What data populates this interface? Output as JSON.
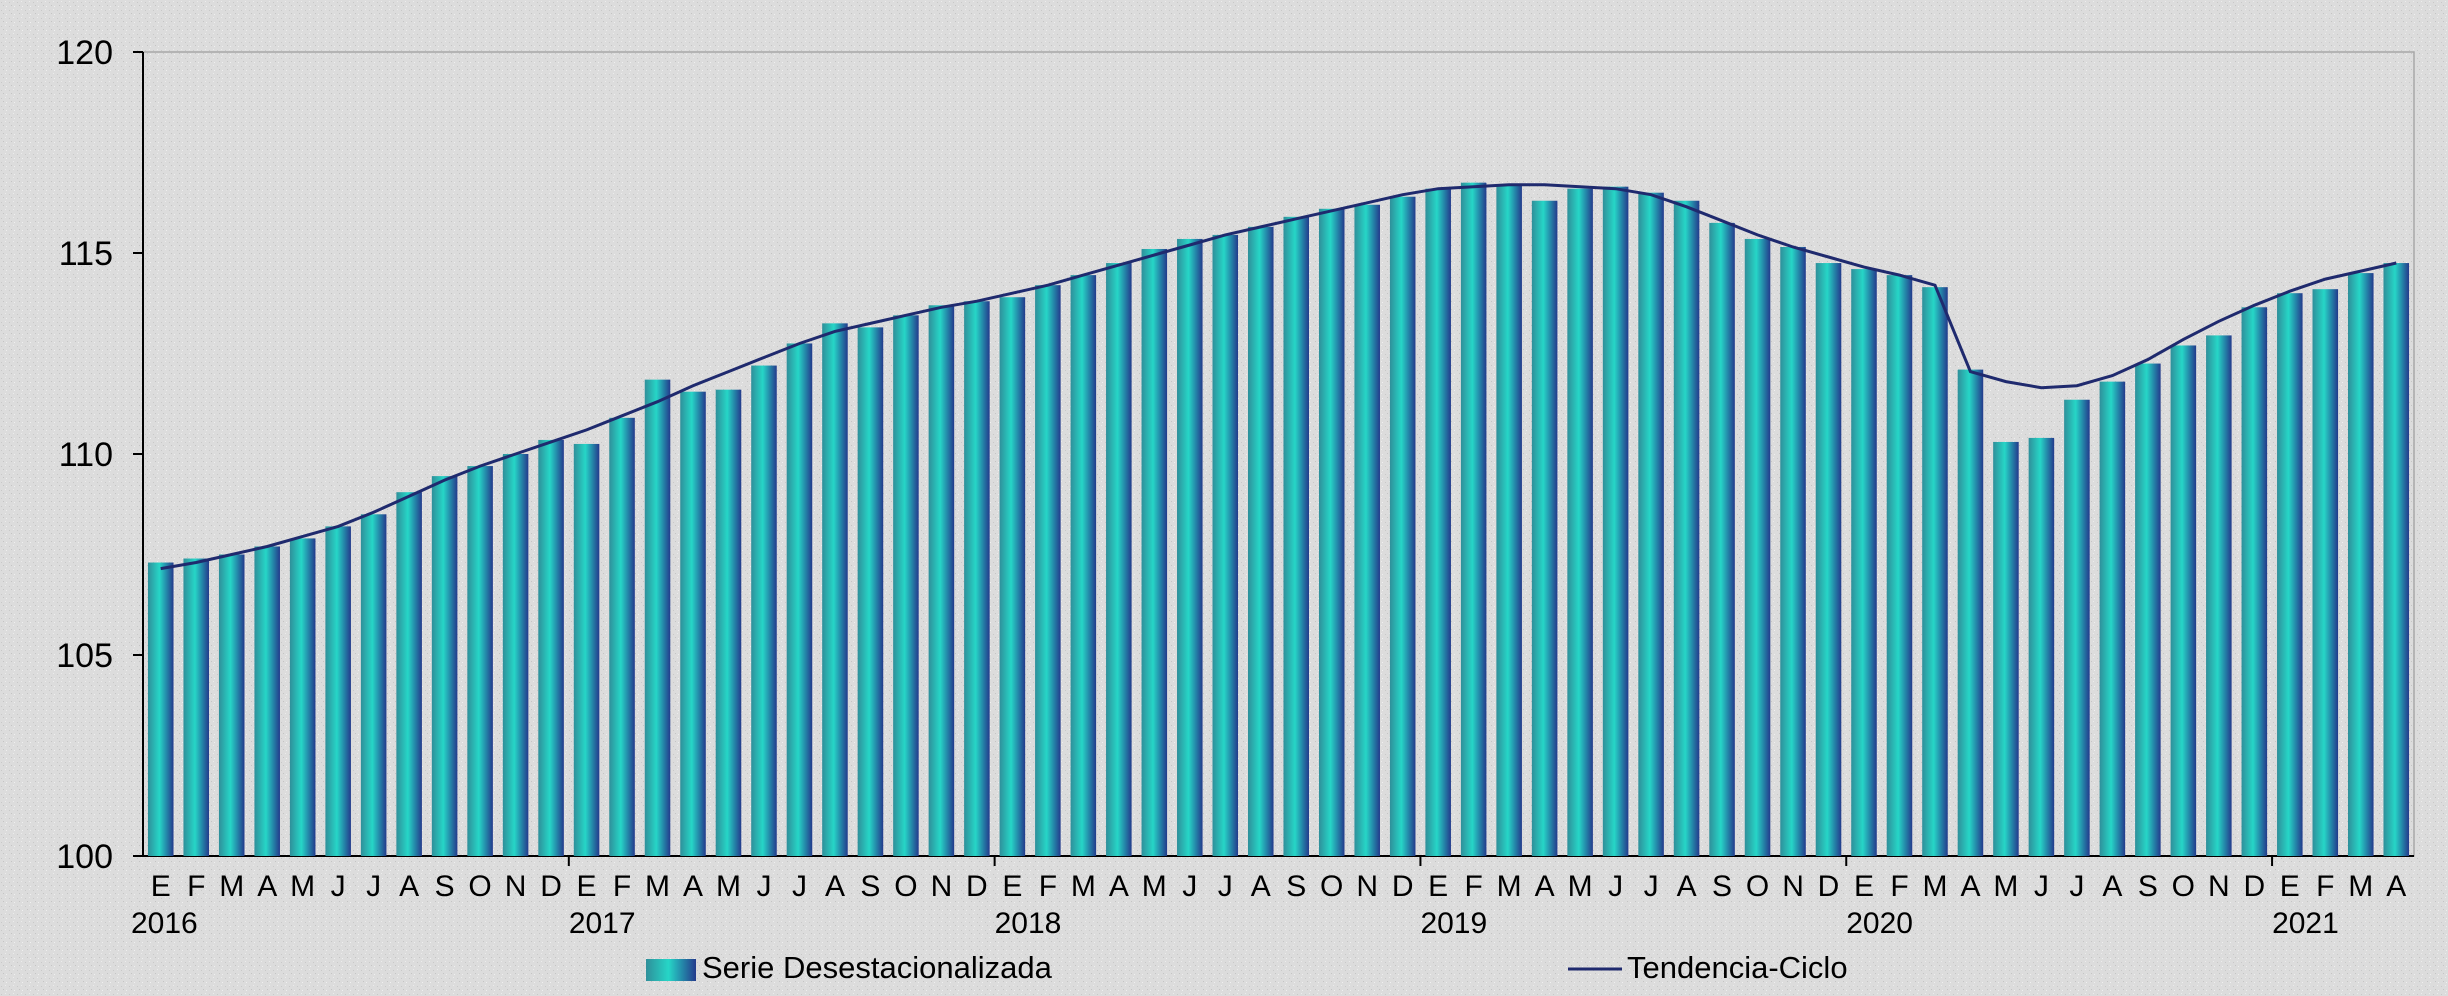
{
  "chart_data": {
    "type": "bar",
    "title": "",
    "xlabel": "",
    "ylabel": "",
    "ylim": [
      100,
      120
    ],
    "yticks": [
      100,
      105,
      110,
      115,
      120
    ],
    "grid": false,
    "legend_position": "bottom",
    "categories": [
      "E",
      "F",
      "M",
      "A",
      "M",
      "J",
      "J",
      "A",
      "S",
      "O",
      "N",
      "D",
      "E",
      "F",
      "M",
      "A",
      "M",
      "J",
      "J",
      "A",
      "S",
      "O",
      "N",
      "D",
      "E",
      "F",
      "M",
      "A",
      "M",
      "J",
      "J",
      "A",
      "S",
      "O",
      "N",
      "D",
      "E",
      "F",
      "M",
      "A",
      "M",
      "J",
      "J",
      "A",
      "S",
      "O",
      "N",
      "D",
      "E",
      "F",
      "M",
      "A",
      "M",
      "J",
      "J",
      "A",
      "S",
      "O",
      "N",
      "D",
      "E",
      "F",
      "M",
      "A"
    ],
    "year_labels": [
      {
        "label": "2016",
        "index": 0
      },
      {
        "label": "2017",
        "index": 12
      },
      {
        "label": "2018",
        "index": 24
      },
      {
        "label": "2019",
        "index": 36
      },
      {
        "label": "2020",
        "index": 48
      },
      {
        "label": "2021",
        "index": 60
      }
    ],
    "series": [
      {
        "name": "Serie Desestacionalizada",
        "type": "bar",
        "color": "#1fb8b0",
        "values": [
          107.3,
          107.4,
          107.5,
          107.7,
          107.9,
          108.2,
          108.5,
          109.05,
          109.45,
          109.7,
          110.0,
          110.35,
          110.25,
          110.9,
          111.85,
          111.55,
          111.6,
          112.2,
          112.75,
          113.25,
          113.15,
          113.45,
          113.7,
          113.8,
          113.9,
          114.2,
          114.45,
          114.75,
          115.1,
          115.35,
          115.45,
          115.65,
          115.9,
          116.1,
          116.2,
          116.4,
          116.6,
          116.75,
          116.7,
          116.3,
          116.6,
          116.65,
          116.5,
          116.3,
          115.75,
          115.35,
          115.15,
          114.75,
          114.6,
          114.45,
          114.15,
          112.1,
          110.3,
          110.4,
          111.35,
          111.8,
          112.25,
          112.7,
          112.95,
          113.65,
          114.0,
          114.1,
          114.5,
          114.75
        ]
      },
      {
        "name": "Tendencia-Ciclo",
        "type": "line",
        "color": "#1f2a6e",
        "values": [
          107.15,
          107.3,
          107.5,
          107.7,
          107.95,
          108.2,
          108.55,
          108.95,
          109.35,
          109.7,
          110.0,
          110.3,
          110.6,
          110.95,
          111.3,
          111.7,
          112.05,
          112.4,
          112.75,
          113.05,
          113.25,
          113.45,
          113.65,
          113.8,
          114.0,
          114.2,
          114.45,
          114.7,
          114.95,
          115.2,
          115.45,
          115.65,
          115.85,
          116.05,
          116.25,
          116.45,
          116.6,
          116.65,
          116.7,
          116.7,
          116.65,
          116.6,
          116.45,
          116.15,
          115.8,
          115.45,
          115.15,
          114.9,
          114.65,
          114.45,
          114.2,
          112.05,
          111.8,
          111.65,
          111.7,
          111.95,
          112.35,
          112.85,
          113.3,
          113.7,
          114.05,
          114.35,
          114.55,
          114.75
        ]
      }
    ]
  }
}
